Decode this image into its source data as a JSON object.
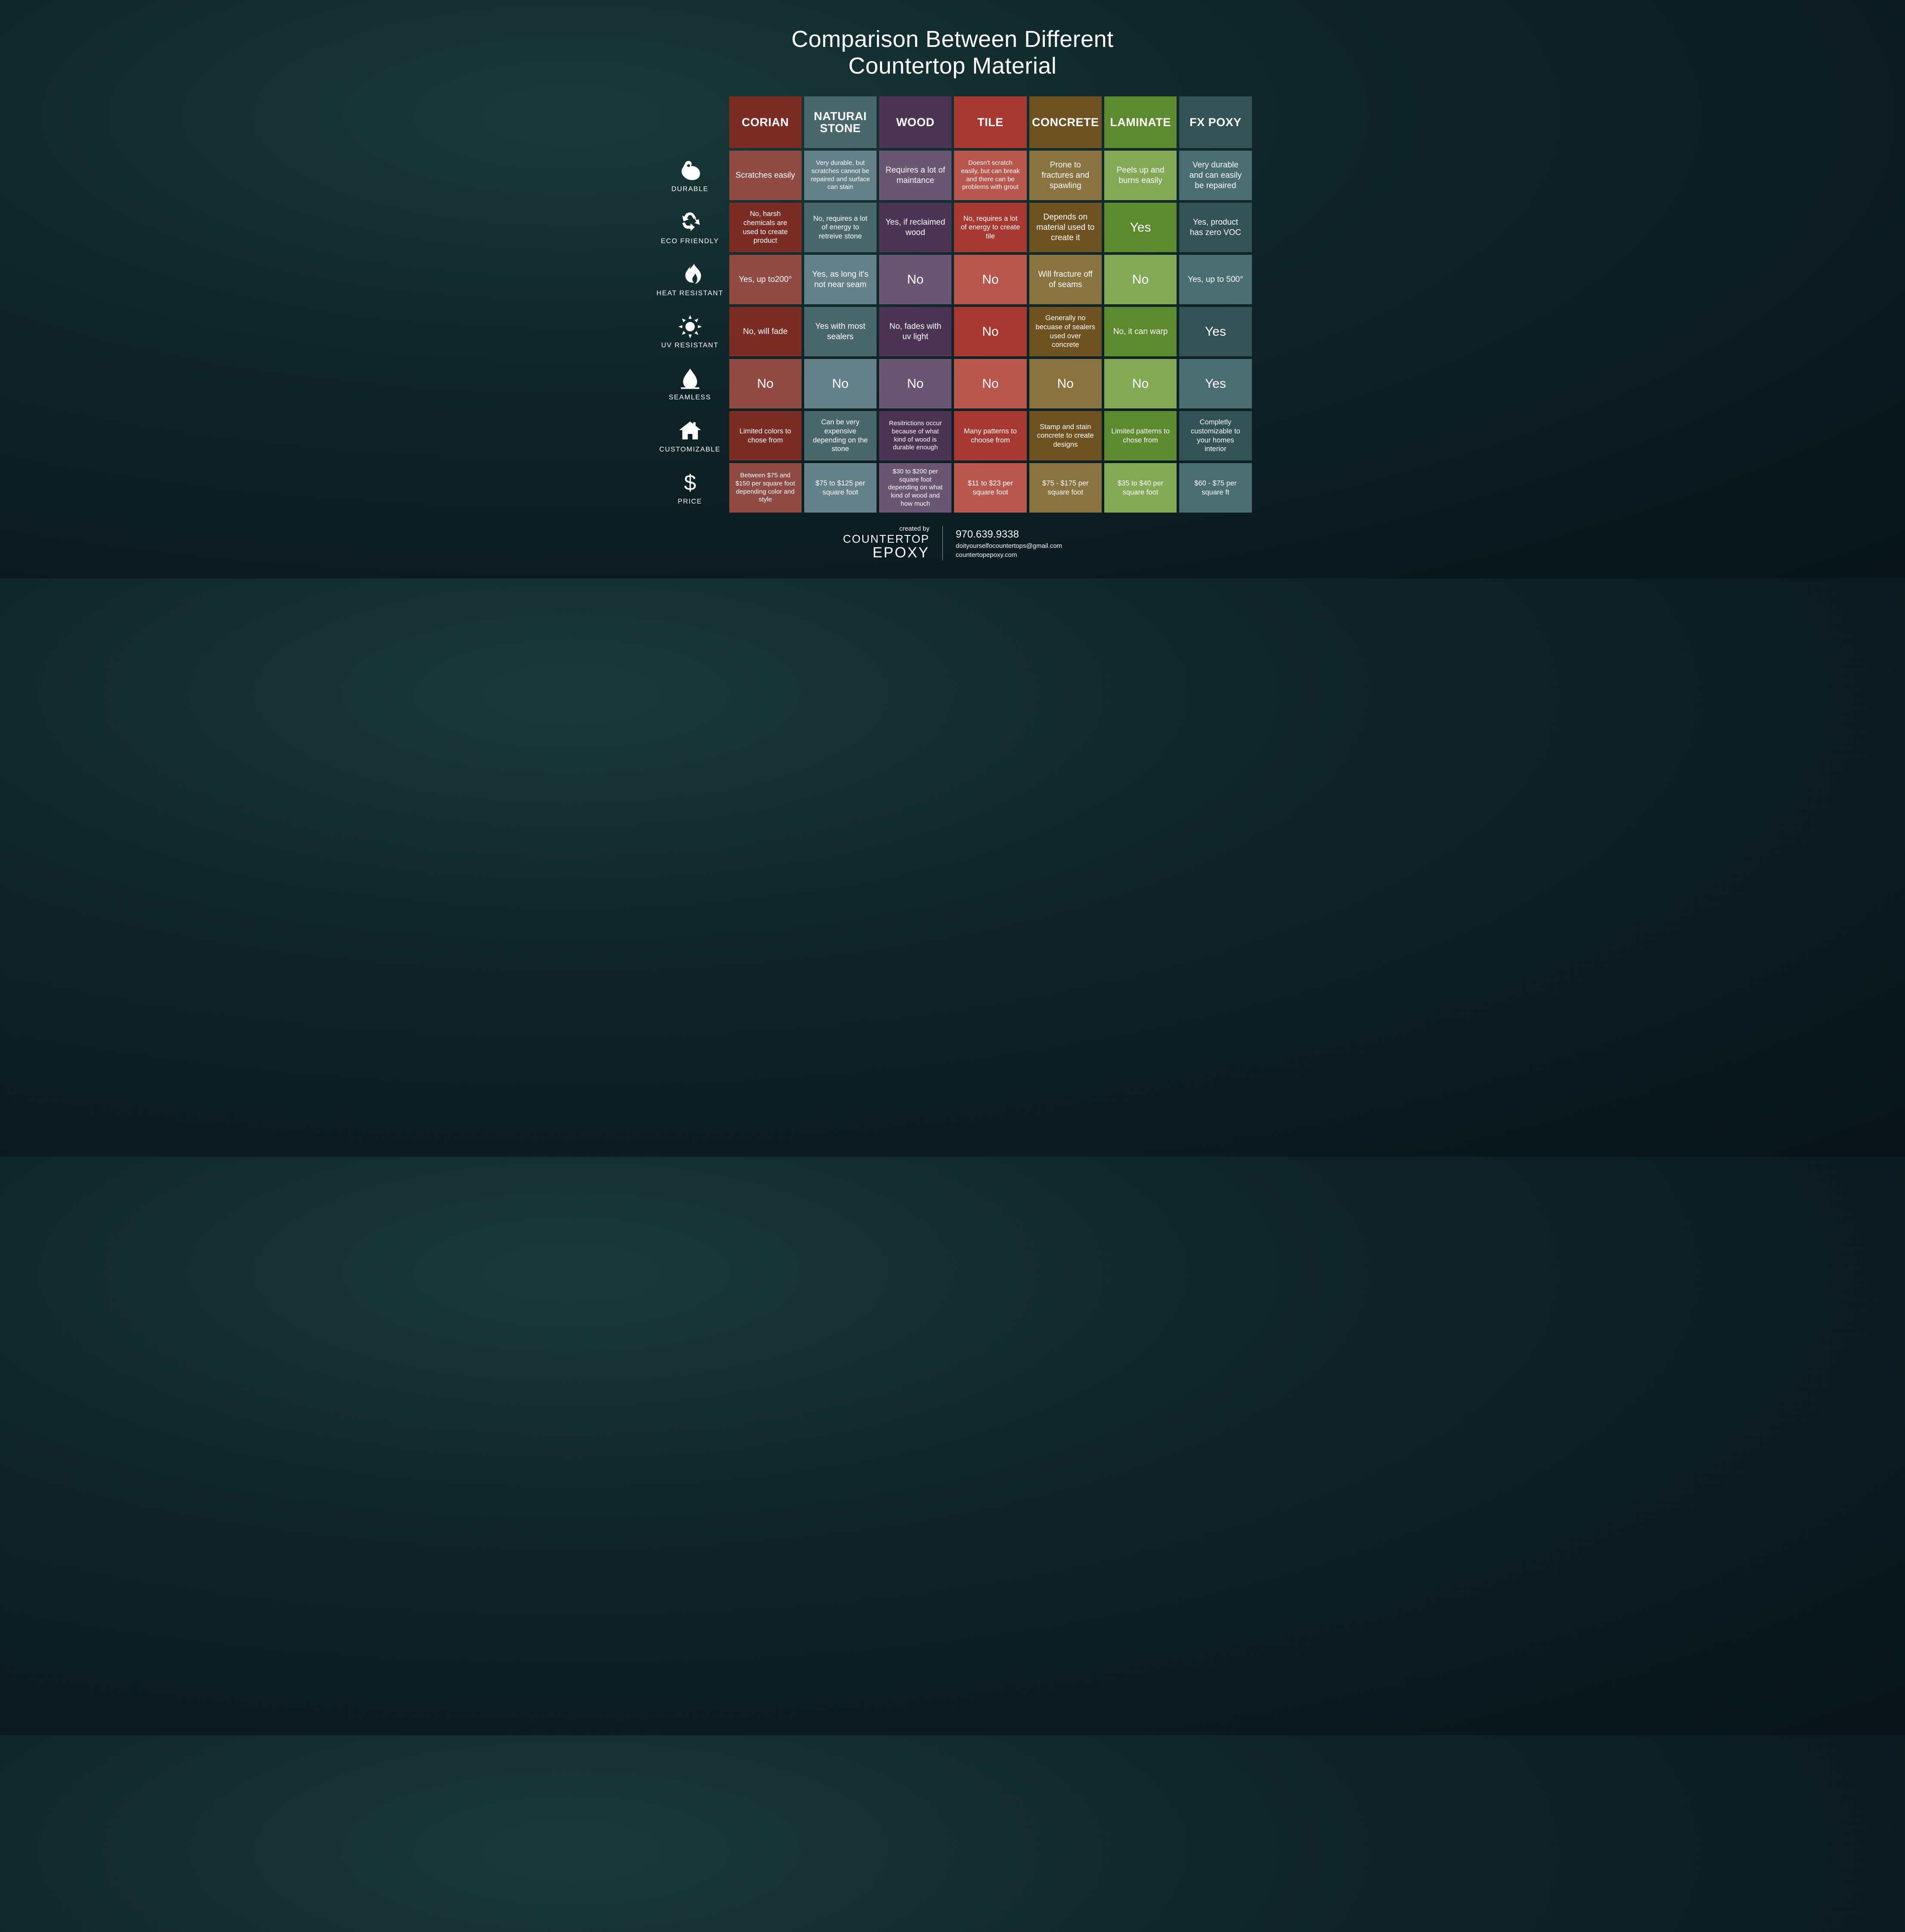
{
  "title_line1": "Comparison Between Different",
  "title_line2": "Countertop Material",
  "columns": [
    {
      "name": "CORIAN",
      "base": "#7a2c25",
      "alt": "#8f4a43"
    },
    {
      "name": "NATURAI STONE",
      "base": "#4a686c",
      "alt": "#64818a"
    },
    {
      "name": "WOOD",
      "base": "#4b3454",
      "alt": "#6a5573"
    },
    {
      "name": "TILE",
      "base": "#a83832",
      "alt": "#b9564e"
    },
    {
      "name": "CONCRETE",
      "base": "#6f5222",
      "alt": "#887341"
    },
    {
      "name": "LAMINATE",
      "base": "#5d8a2e",
      "alt": "#83a856"
    },
    {
      "name": "FX POXY",
      "base": "#335256",
      "alt": "#4a6d71"
    }
  ],
  "rows": [
    {
      "key": "durable",
      "label": "DURABLE",
      "icon": "bicep"
    },
    {
      "key": "eco",
      "label": "ECO FRIENDLY",
      "icon": "recycle"
    },
    {
      "key": "heat",
      "label": "HEAT RESISTANT",
      "icon": "flame"
    },
    {
      "key": "uv",
      "label": "UV RESISTANT",
      "icon": "sun"
    },
    {
      "key": "seamless",
      "label": "SEAMLESS",
      "icon": "drop"
    },
    {
      "key": "customizable",
      "label": "CUSTOMIZABLE",
      "icon": "house"
    },
    {
      "key": "price",
      "label": "PRICE",
      "icon": "dollar"
    }
  ],
  "cells": {
    "durable": [
      {
        "t": "Scratches easily",
        "s": "med"
      },
      {
        "t": "Very durable, but scratches cannot be repaired and surface can stain",
        "s": "tiny"
      },
      {
        "t": "Requires a lot of maintance",
        "s": "med"
      },
      {
        "t": "Doesn't scratch easily, but can break and there can be problems with grout",
        "s": "tiny"
      },
      {
        "t": "Prone to fractures and spawling",
        "s": "med"
      },
      {
        "t": "Peels up and burns easily",
        "s": "med"
      },
      {
        "t": "Very durable and can easily be repaired",
        "s": "med"
      }
    ],
    "eco": [
      {
        "t": "No, harsh chemicals are used to create product",
        "s": "small"
      },
      {
        "t": "No, requires a lot of energy to retreive stone",
        "s": "small"
      },
      {
        "t": "Yes, if reclaimed wood",
        "s": "med"
      },
      {
        "t": "No, requires a lot of energy to create tile",
        "s": "small"
      },
      {
        "t": "Depends on material used to create it",
        "s": "med"
      },
      {
        "t": "Yes",
        "s": "big"
      },
      {
        "t": "Yes, product has zero VOC",
        "s": "med"
      }
    ],
    "heat": [
      {
        "t": "Yes, up to200°",
        "s": "med"
      },
      {
        "t": "Yes, as long it's not near seam",
        "s": "med"
      },
      {
        "t": "No",
        "s": "big"
      },
      {
        "t": "No",
        "s": "big"
      },
      {
        "t": "Will fracture off of seams",
        "s": "med"
      },
      {
        "t": "No",
        "s": "big"
      },
      {
        "t": "Yes, up to 500°",
        "s": "med"
      }
    ],
    "uv": [
      {
        "t": "No, will fade",
        "s": "med"
      },
      {
        "t": "Yes with most sealers",
        "s": "med"
      },
      {
        "t": "No, fades with uv light",
        "s": "med"
      },
      {
        "t": "No",
        "s": "big"
      },
      {
        "t": "Generally no becuase of sealers used over concrete",
        "s": "small"
      },
      {
        "t": "No, it can warp",
        "s": "med"
      },
      {
        "t": "Yes",
        "s": "big"
      }
    ],
    "seamless": [
      {
        "t": "No",
        "s": "big"
      },
      {
        "t": "No",
        "s": "big"
      },
      {
        "t": "No",
        "s": "big"
      },
      {
        "t": "No",
        "s": "big"
      },
      {
        "t": "No",
        "s": "big"
      },
      {
        "t": "No",
        "s": "big"
      },
      {
        "t": "Yes",
        "s": "big"
      }
    ],
    "customizable": [
      {
        "t": "Limited colors to chose from",
        "s": "small"
      },
      {
        "t": "Can be very expensive depending on the stone",
        "s": "small"
      },
      {
        "t": "Resitrictions occur because of what kind of wood is durable enough",
        "s": "tiny"
      },
      {
        "t": "Many patterns to choose from",
        "s": "small"
      },
      {
        "t": "Stamp and stain concrete to create designs",
        "s": "small"
      },
      {
        "t": "Limited patterns to chose from",
        "s": "small"
      },
      {
        "t": "Completly customizable to your homes interior",
        "s": "small"
      }
    ],
    "price": [
      {
        "t": "Between $75 and $150 per square foot depending color and style",
        "s": "tiny"
      },
      {
        "t": "$75 to $125 per square foot",
        "s": "small"
      },
      {
        "t": "$30 to $200 per square foot depending on what kind of wood and how much",
        "s": "tiny"
      },
      {
        "t": "$11 to $23 per square foot",
        "s": "small"
      },
      {
        "t": "$75 - $175 per square foot",
        "s": "small"
      },
      {
        "t": "$35 to $40 per square foot",
        "s": "small"
      },
      {
        "t": "$60 - $75 per square ft",
        "s": "small"
      }
    ]
  },
  "footer": {
    "created_by": "created by",
    "brand_line1": "COUNTERTOP",
    "brand_line2": "EPOXY",
    "phone": "970.639.9338",
    "email": "doityourselfocountertops@gmail.com",
    "site": "countertopepoxy.com"
  }
}
